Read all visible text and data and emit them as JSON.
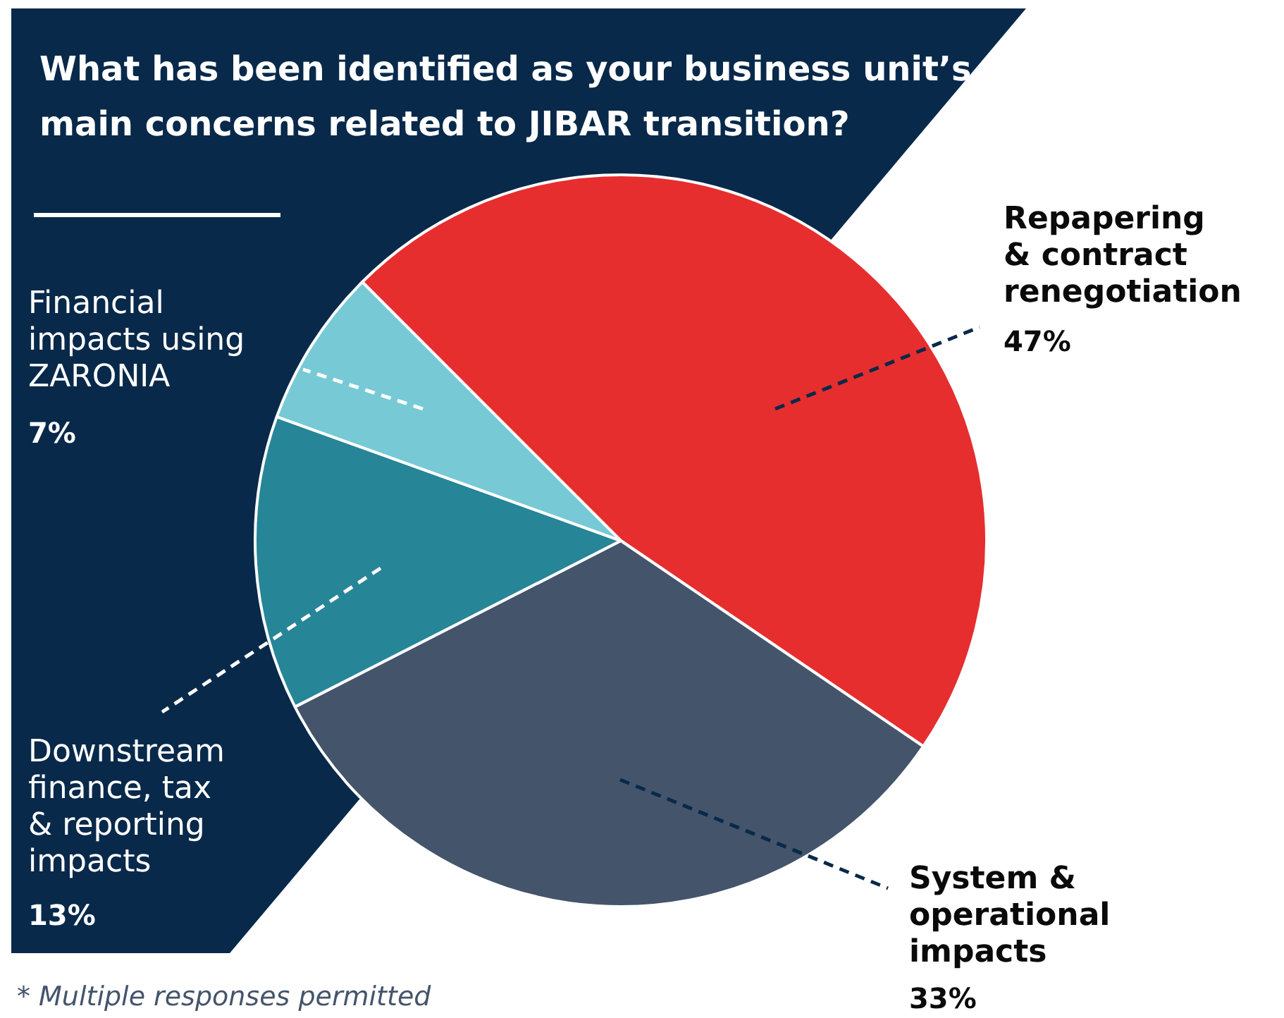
{
  "chart_data": {
    "type": "pie",
    "title": "What has been identified as your business unit’s main concerns related to JIBAR transition?",
    "categories": [
      "Repapering & contract renegotiation",
      "System & operational impacts",
      "Downstream finance, tax & reporting impacts",
      "Financial impacts using ZARONIA"
    ],
    "values": [
      47,
      33,
      13,
      7
    ],
    "value_labels": [
      "47%",
      "33%",
      "13%",
      "7%"
    ],
    "colors": [
      "#e62e2f",
      "#44546b",
      "#278598",
      "#77c9d6"
    ],
    "legend": false,
    "annotations": [
      "* Multiple responses permitted"
    ]
  }
}
